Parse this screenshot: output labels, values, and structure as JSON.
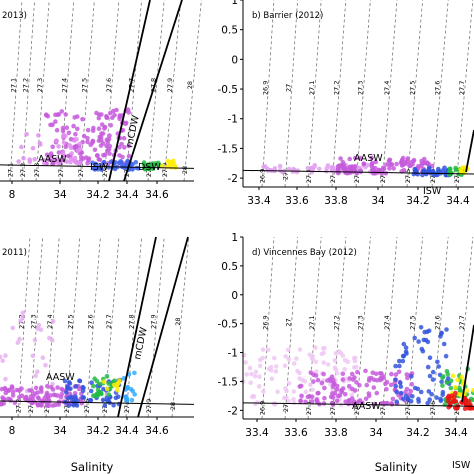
{
  "chart_data": [
    {
      "type": "scatter",
      "title": "2013)",
      "xlabel": "",
      "ylabel": "",
      "xlim": [
        33.75,
        34.8
      ],
      "ylim": [
        -2.15,
        1.0
      ],
      "xticks": [
        "8",
        "34",
        "34.2",
        "34.4",
        "34.6"
      ],
      "yticks": [],
      "isopycnals": [
        "27.1",
        "27.2",
        "27.3",
        "27.4",
        "27.5",
        "27.6",
        "27.7",
        "27.8",
        "27.9",
        "28"
      ],
      "annotations": [
        "AASW",
        "mCDW",
        "DSW",
        "ISW"
      ],
      "clouds": [
        {
          "color": "#c55bdc",
          "x": [
            34.0,
            34.45
          ],
          "y": [
            -1.85,
            -0.9
          ],
          "n": 150
        },
        {
          "color": "#e090ee",
          "x": [
            33.85,
            34.2
          ],
          "y": [
            -1.85,
            -1.3
          ],
          "n": 40
        },
        {
          "color": "#4466ee",
          "x": [
            34.25,
            34.5
          ],
          "y": [
            -1.95,
            -1.8
          ],
          "n": 50
        },
        {
          "color": "#22bb44",
          "x": [
            34.52,
            34.62
          ],
          "y": [
            -1.95,
            -1.8
          ],
          "n": 25
        },
        {
          "color": "#ffee00",
          "x": [
            34.62,
            34.7
          ],
          "y": [
            -1.92,
            -1.78
          ],
          "n": 12
        }
      ]
    },
    {
      "type": "scatter",
      "title": "b) Barrier (2012)",
      "xlabel": "",
      "ylabel": "",
      "xlim": [
        33.4,
        34.62
      ],
      "ylim": [
        -2.15,
        1.0
      ],
      "xticks": [
        "33.4",
        "33.6",
        "33.8",
        "34",
        "34.2",
        "34.4"
      ],
      "yticks": [
        "1",
        "0.5",
        "0",
        "-0.5",
        "-1",
        "-1.5",
        "-2"
      ],
      "isopycnals": [
        "26.9",
        "27",
        "27.1",
        "27.2",
        "27.3",
        "27.4",
        "27.5",
        "27.6",
        "27.7"
      ],
      "annotations": [
        "AASW",
        "ISW"
      ],
      "clouds": [
        {
          "color": "#e0a0ee",
          "x": [
            33.5,
            34.1
          ],
          "y": [
            -1.9,
            -1.78
          ],
          "n": 60
        },
        {
          "color": "#c55bdc",
          "x": [
            33.9,
            34.4
          ],
          "y": [
            -1.92,
            -1.65
          ],
          "n": 110
        },
        {
          "color": "#3355dd",
          "x": [
            34.3,
            34.5
          ],
          "y": [
            -1.95,
            -1.82
          ],
          "n": 40
        },
        {
          "color": "#22bb44",
          "x": [
            34.48,
            34.58
          ],
          "y": [
            -1.95,
            -1.82
          ],
          "n": 20
        },
        {
          "color": "#ffee00",
          "x": [
            34.55,
            34.6
          ],
          "y": [
            -1.92,
            -1.82
          ],
          "n": 8
        }
      ]
    },
    {
      "type": "scatter",
      "title": "2011)",
      "xlabel": "Salinity",
      "ylabel": "",
      "xlim": [
        33.75,
        34.8
      ],
      "ylim": [
        -2.15,
        1.0
      ],
      "xticks": [
        "8",
        "34",
        "34.2",
        "34.4",
        "34.6"
      ],
      "yticks": [],
      "isopycnals": [
        "27.2",
        "27.3",
        "27.4",
        "27.5",
        "27.6",
        "27.7",
        "27.8",
        "27.9",
        "28"
      ],
      "annotations": [
        "AASW",
        "mCDW"
      ],
      "clouds": [
        {
          "color": "#e8b0f2",
          "x": [
            33.75,
            34.05
          ],
          "y": [
            -1.7,
            -0.3
          ],
          "n": 25
        },
        {
          "color": "#c55bdc",
          "x": [
            33.75,
            34.2
          ],
          "y": [
            -1.95,
            -1.6
          ],
          "n": 110
        },
        {
          "color": "#3355dd",
          "x": [
            34.1,
            34.4
          ],
          "y": [
            -1.95,
            -1.5
          ],
          "n": 60
        },
        {
          "color": "#22bb44",
          "x": [
            34.25,
            34.4
          ],
          "y": [
            -1.8,
            -1.4
          ],
          "n": 25
        },
        {
          "color": "#ffee00",
          "x": [
            34.3,
            34.4
          ],
          "y": [
            -1.7,
            -1.5
          ],
          "n": 8
        },
        {
          "color": "#33aaff",
          "x": [
            34.42,
            34.48
          ],
          "y": [
            -1.9,
            -1.3
          ],
          "n": 15
        }
      ]
    },
    {
      "type": "scatter",
      "title": "d) Vincennes Bay (2012)",
      "xlabel": "Salinity",
      "ylabel": "",
      "xlim": [
        33.4,
        34.62
      ],
      "ylim": [
        -2.15,
        1.0
      ],
      "xticks": [
        "33.4",
        "33.6",
        "33.8",
        "34",
        "34.2",
        "34.4"
      ],
      "yticks": [
        "1",
        "0.5",
        "0",
        "-0.5",
        "-1",
        "-1.5",
        "-2"
      ],
      "isopycnals": [
        "26.9",
        "27",
        "27.1",
        "27.2",
        "27.3",
        "27.4",
        "27.5",
        "27.6",
        "27.7"
      ],
      "annotations": [
        "AASW",
        "ISW"
      ],
      "clouds": [
        {
          "color": "#f0c8f4",
          "x": [
            33.4,
            34.0
          ],
          "y": [
            -1.9,
            -0.9
          ],
          "n": 110
        },
        {
          "color": "#c55bdc",
          "x": [
            33.7,
            34.3
          ],
          "y": [
            -1.9,
            -1.3
          ],
          "n": 130
        },
        {
          "color": "#3355dd",
          "x": [
            34.2,
            34.5
          ],
          "y": [
            -1.9,
            -0.55
          ],
          "n": 70
        },
        {
          "color": "#22bb44",
          "x": [
            34.45,
            34.62
          ],
          "y": [
            -1.9,
            -1.2
          ],
          "n": 35
        },
        {
          "color": "#ffee00",
          "x": [
            34.5,
            34.62
          ],
          "y": [
            -1.8,
            -1.4
          ],
          "n": 15
        },
        {
          "color": "#ee1111",
          "x": [
            34.48,
            34.62
          ],
          "y": [
            -2.0,
            -1.7
          ],
          "n": 35
        }
      ]
    }
  ]
}
